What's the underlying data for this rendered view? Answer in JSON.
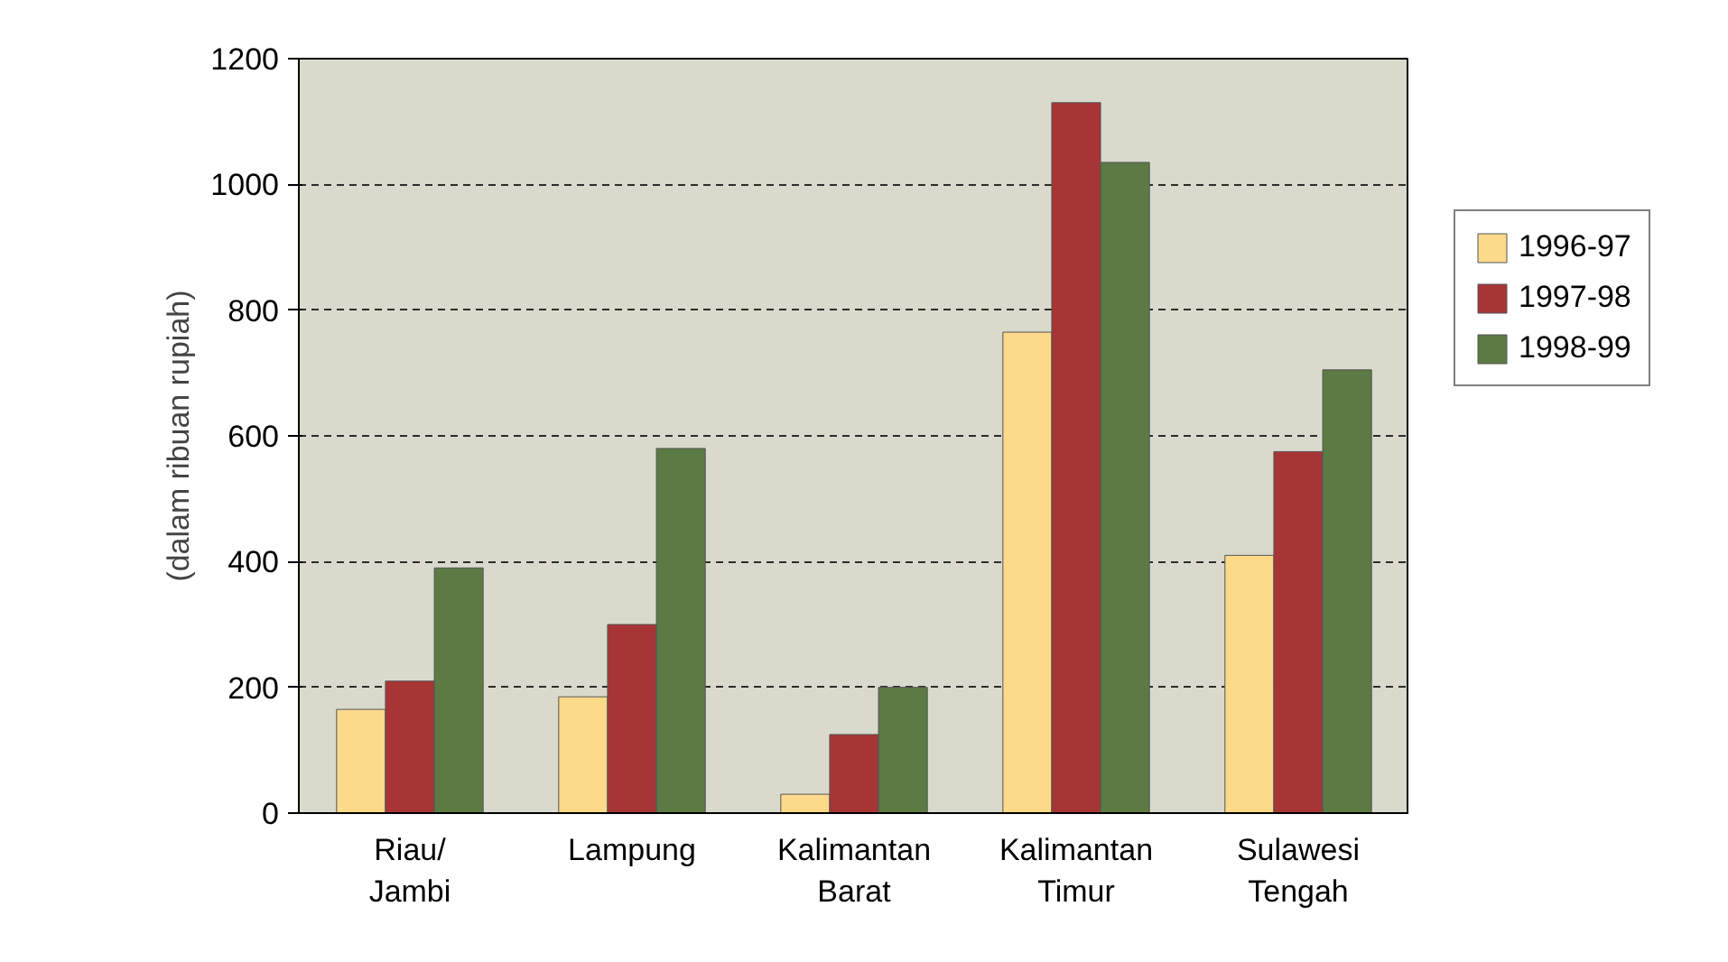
{
  "chart_data": {
    "type": "bar",
    "ylabel": "(dalam ribuan rupiah)",
    "categories": [
      "Riau/\nJambi",
      "Lampung",
      "Kalimantan\nBarat",
      "Kalimantan\nTimur",
      "Sulawesi\nTengah"
    ],
    "series": [
      {
        "name": "1996-97",
        "color": "#fdd98a",
        "values": [
          165,
          185,
          30,
          765,
          410
        ]
      },
      {
        "name": "1997-98",
        "color": "#a83535",
        "values": [
          210,
          300,
          125,
          1130,
          575
        ]
      },
      {
        "name": "1998-99",
        "color": "#5b7a44",
        "values": [
          390,
          580,
          200,
          1035,
          705
        ]
      }
    ],
    "ylim": [
      0,
      1200
    ],
    "yticks": [
      0,
      200,
      400,
      600,
      800,
      1000,
      1200
    ],
    "grid": "y",
    "legend": "right"
  }
}
